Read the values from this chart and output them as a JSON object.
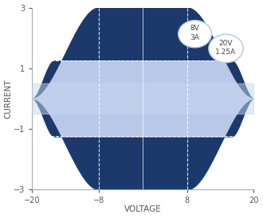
{
  "xlim": [
    -20,
    20
  ],
  "ylim": [
    -3,
    3
  ],
  "xticks": [
    -20,
    -8,
    8,
    20
  ],
  "yticks": [
    -3,
    -1,
    1,
    3
  ],
  "xlabel": "VOLTAGE",
  "ylabel": "CURRENT",
  "bg_color": "#ffffff",
  "dark_blue": "#1b3a6b",
  "light_blue": "#b8c8e8",
  "medium_blue": "#c8d8f0",
  "smu4001_label": "8V\n3A",
  "smu4201_label": "20V\n1.25A",
  "v_knee": 8,
  "v_max": 20,
  "i_max_inner": 3,
  "i_max_outer": 1.25,
  "axis_fontsize": 7.5,
  "tick_fontsize": 7
}
